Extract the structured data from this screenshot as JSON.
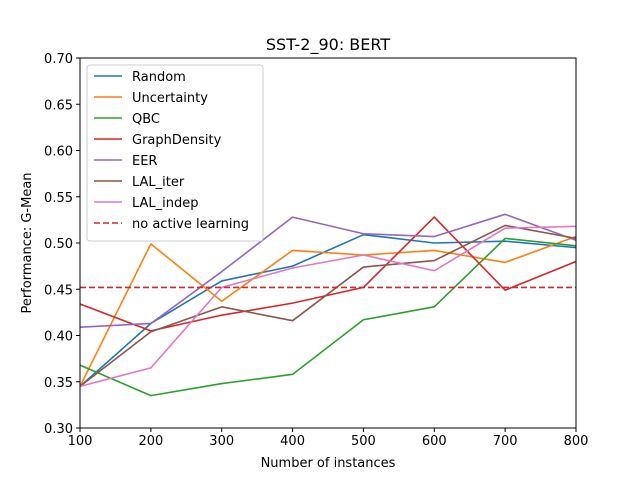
{
  "chart_data": {
    "type": "line",
    "title": "SST-2_90: BERT",
    "xlabel": "Number of instances",
    "ylabel": "Performance: G-Mean",
    "xlim": [
      100,
      800
    ],
    "ylim": [
      0.3,
      0.7
    ],
    "xticks": [
      100,
      200,
      300,
      400,
      500,
      600,
      700,
      800
    ],
    "yticks": [
      "0.30",
      "0.35",
      "0.40",
      "0.45",
      "0.50",
      "0.55",
      "0.60",
      "0.65",
      "0.70"
    ],
    "x": [
      100,
      200,
      300,
      400,
      500,
      600,
      700,
      800
    ],
    "series": [
      {
        "name": "Random",
        "color": "#1f77b4",
        "values": [
          0.345,
          0.413,
          0.459,
          0.475,
          0.509,
          0.5,
          0.502,
          0.495
        ]
      },
      {
        "name": "Uncertainty",
        "color": "#ff7f0e",
        "values": [
          0.345,
          0.499,
          0.437,
          0.492,
          0.487,
          0.492,
          0.479,
          0.507
        ]
      },
      {
        "name": "QBC",
        "color": "#2ca02c",
        "values": [
          0.368,
          0.335,
          0.348,
          0.358,
          0.417,
          0.431,
          0.505,
          0.497
        ]
      },
      {
        "name": "GraphDensity",
        "color": "#d62728",
        "values": [
          0.434,
          0.405,
          0.422,
          0.435,
          0.452,
          0.528,
          0.449,
          0.48
        ]
      },
      {
        "name": "EER",
        "color": "#9467bd",
        "values": [
          0.409,
          0.413,
          0.469,
          0.528,
          0.51,
          0.507,
          0.531,
          0.503
        ]
      },
      {
        "name": "LAL_iter",
        "color": "#8c564b",
        "values": [
          0.345,
          0.404,
          0.431,
          0.416,
          0.474,
          0.481,
          0.519,
          0.505
        ]
      },
      {
        "name": "LAL_indep",
        "color": "#e377c2",
        "values": [
          0.345,
          0.365,
          0.452,
          0.473,
          0.487,
          0.47,
          0.516,
          0.518
        ]
      }
    ],
    "reference_line": {
      "name": "no active learning",
      "color": "#d62728",
      "style": "dashed",
      "value": 0.452
    },
    "legend_position": "top-left",
    "grid": false
  }
}
